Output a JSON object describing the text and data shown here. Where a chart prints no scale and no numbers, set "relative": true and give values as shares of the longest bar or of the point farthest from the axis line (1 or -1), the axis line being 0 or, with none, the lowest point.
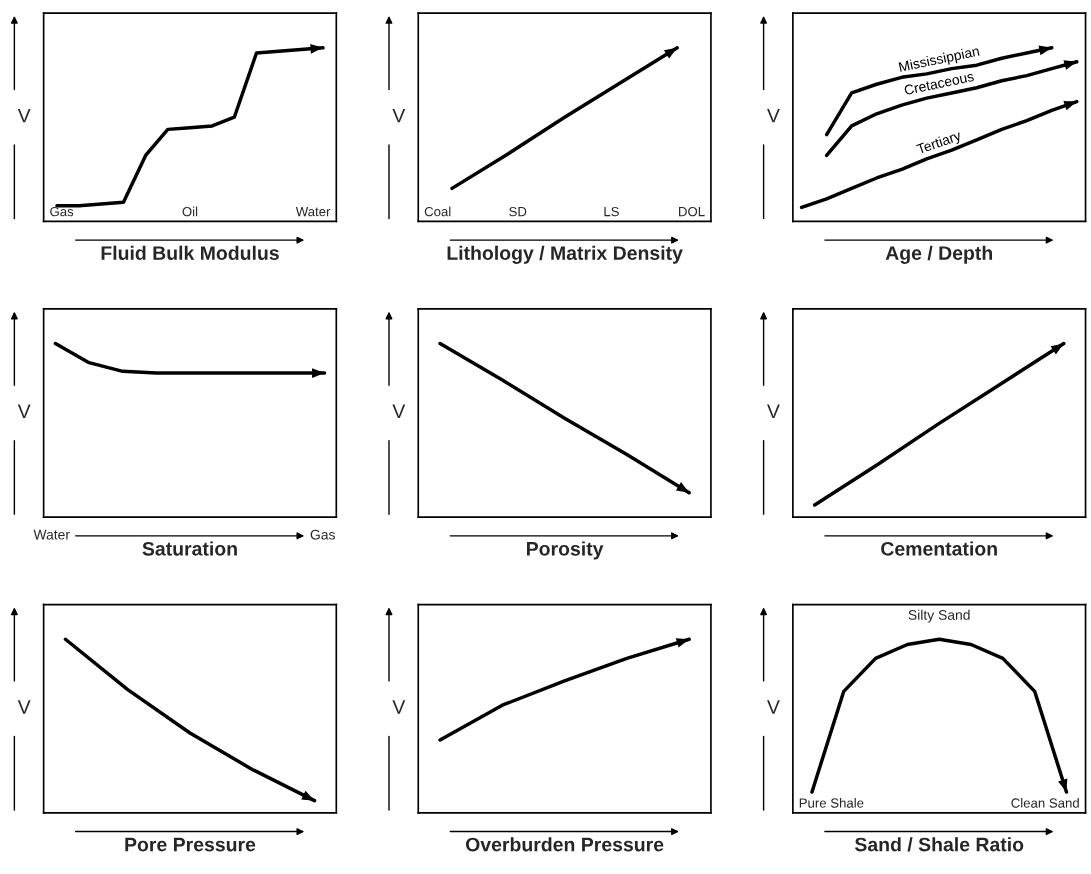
{
  "chart_data": [
    {
      "type": "line",
      "relative": true,
      "xlabel": "Fluid Bulk Modulus",
      "ylabel": "V",
      "categories": [
        null,
        null,
        null,
        null,
        null,
        null,
        null,
        null,
        null,
        null,
        null,
        null,
        null
      ],
      "series": [
        {
          "color": "#000000",
          "values": [
            0.09,
            0.09,
            0.1,
            0.11,
            0.38,
            0.53,
            0.54,
            0.55,
            0.6,
            0.97,
            0.98,
            0.99,
            1.0
          ]
        }
      ],
      "annotations": [
        "Gas",
        "Oil",
        "Water"
      ]
    },
    {
      "type": "line",
      "relative": true,
      "xlabel": "Lithology / Matrix Density",
      "ylabel": "V",
      "categories": [
        null,
        null,
        null,
        null,
        null
      ],
      "series": [
        {
          "color": "#000000",
          "values": [
            0.19,
            0.39,
            0.6,
            0.8,
            1.0
          ]
        }
      ],
      "annotations": [
        "Coal",
        "SD",
        "LS",
        "DOL"
      ]
    },
    {
      "type": "line",
      "relative": true,
      "xlabel": "Age / Depth",
      "ylabel": "V",
      "categories": [
        null,
        null,
        null,
        null,
        null,
        null,
        null,
        null,
        null,
        null,
        null,
        null
      ],
      "series": [
        {
          "name": "Mississippian",
          "color": "#000000",
          "values": [
            null,
            0.5,
            0.74,
            0.79,
            0.83,
            0.85,
            0.88,
            0.9,
            0.94,
            0.97,
            1.0,
            null
          ]
        },
        {
          "name": "Cretaceous",
          "color": "#000000",
          "values": [
            null,
            0.38,
            0.55,
            0.62,
            0.67,
            0.71,
            0.74,
            0.77,
            0.81,
            0.84,
            0.88,
            0.92
          ]
        },
        {
          "name": "Tertiary",
          "color": "#000000",
          "values": [
            0.08,
            0.13,
            0.19,
            0.25,
            0.3,
            0.36,
            0.41,
            0.47,
            0.53,
            0.58,
            0.64,
            0.69
          ]
        }
      ]
    },
    {
      "type": "line",
      "relative": true,
      "xlabel": "Saturation",
      "ylabel": "V",
      "categories": [
        null,
        null,
        null,
        null,
        null,
        null,
        null,
        null,
        null
      ],
      "series": [
        {
          "color": "#000000",
          "values": [
            1.0,
            0.89,
            0.84,
            0.83,
            0.83,
            0.83,
            0.83,
            0.83,
            0.83
          ]
        }
      ],
      "annotations": [
        "Water",
        "Gas"
      ]
    },
    {
      "type": "line",
      "relative": true,
      "xlabel": "Porosity",
      "ylabel": "V",
      "categories": [
        null,
        null,
        null,
        null,
        null
      ],
      "series": [
        {
          "color": "#000000",
          "values": [
            1.0,
            0.79,
            0.57,
            0.36,
            0.14
          ]
        }
      ]
    },
    {
      "type": "line",
      "relative": true,
      "xlabel": "Cementation",
      "ylabel": "V",
      "categories": [
        null,
        null,
        null,
        null,
        null
      ],
      "series": [
        {
          "color": "#000000",
          "values": [
            0.07,
            0.3,
            0.54,
            0.77,
            1.0
          ]
        }
      ]
    },
    {
      "type": "line",
      "relative": true,
      "xlabel": "Pore Pressure",
      "ylabel": "V",
      "categories": [
        null,
        null,
        null,
        null,
        null
      ],
      "series": [
        {
          "color": "#000000",
          "values": [
            1.0,
            0.71,
            0.46,
            0.25,
            0.07
          ]
        }
      ]
    },
    {
      "type": "line",
      "relative": true,
      "xlabel": "Overburden Pressure",
      "ylabel": "V",
      "categories": [
        null,
        null,
        null,
        null,
        null
      ],
      "series": [
        {
          "color": "#000000",
          "values": [
            0.42,
            0.62,
            0.76,
            0.89,
            1.0
          ]
        }
      ]
    },
    {
      "type": "line",
      "relative": true,
      "xlabel": "Sand / Shale Ratio",
      "ylabel": "V",
      "categories": [
        null,
        null,
        null,
        null,
        null,
        null,
        null,
        null,
        null
      ],
      "series": [
        {
          "color": "#000000",
          "values": [
            0.12,
            0.7,
            0.89,
            0.97,
            1.0,
            0.97,
            0.89,
            0.7,
            0.12
          ]
        }
      ],
      "annotations": [
        "Pure Shale",
        "Silty Sand",
        "Clean Sand"
      ]
    }
  ]
}
